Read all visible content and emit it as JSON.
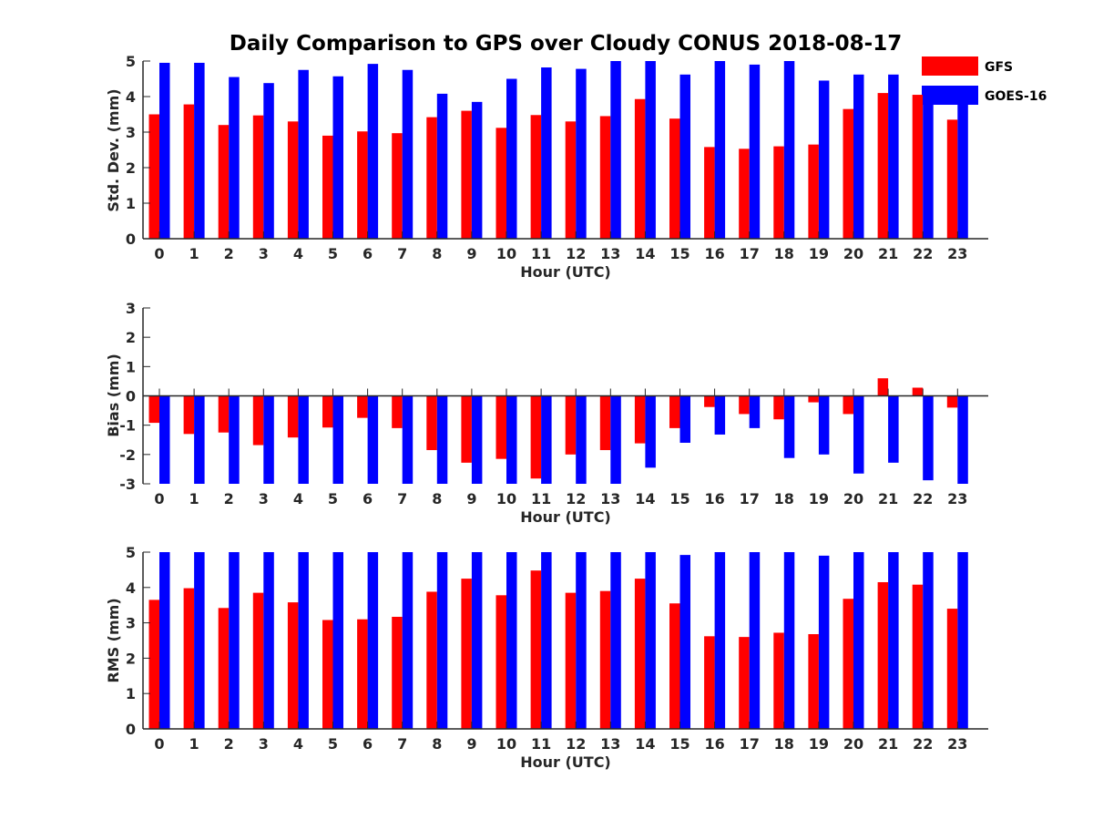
{
  "chart_data": [
    {
      "type": "bar",
      "title": "Daily Comparison to GPS over Cloudy CONUS 2018-08-17",
      "xlabel": "Hour (UTC)",
      "ylabel": "Std. Dev. (mm)",
      "ylim": [
        0,
        5
      ],
      "yticks": [
        0,
        1,
        2,
        3,
        4,
        5
      ],
      "categories": [
        "0",
        "1",
        "2",
        "3",
        "4",
        "5",
        "6",
        "7",
        "8",
        "9",
        "10",
        "11",
        "12",
        "13",
        "14",
        "15",
        "16",
        "17",
        "18",
        "19",
        "20",
        "21",
        "22",
        "23"
      ],
      "series": [
        {
          "name": "GFS",
          "color": "#ff0000",
          "values": [
            3.5,
            3.78,
            3.2,
            3.47,
            3.3,
            2.9,
            3.02,
            2.97,
            3.42,
            3.6,
            3.12,
            3.48,
            3.3,
            3.45,
            3.93,
            3.38,
            2.58,
            2.53,
            2.6,
            2.65,
            3.65,
            4.1,
            4.05,
            3.35
          ]
        },
        {
          "name": "GOES-16",
          "color": "#0000ff",
          "values": [
            4.95,
            4.95,
            4.55,
            4.38,
            4.75,
            4.57,
            4.92,
            4.75,
            4.08,
            3.85,
            4.5,
            4.82,
            4.78,
            5.0,
            5.0,
            4.62,
            5.0,
            4.9,
            5.0,
            4.45,
            4.62,
            4.62,
            4.22,
            3.98
          ]
        }
      ],
      "legend": "top-right",
      "grid": false
    },
    {
      "type": "bar",
      "xlabel": "Hour (UTC)",
      "ylabel": "Bias (mm)",
      "ylim": [
        -3,
        3
      ],
      "yticks": [
        -3,
        -2,
        -1,
        0,
        1,
        2,
        3
      ],
      "categories": [
        "0",
        "1",
        "2",
        "3",
        "4",
        "5",
        "6",
        "7",
        "8",
        "9",
        "10",
        "11",
        "12",
        "13",
        "14",
        "15",
        "16",
        "17",
        "18",
        "19",
        "20",
        "21",
        "22",
        "23"
      ],
      "series": [
        {
          "name": "GFS",
          "color": "#ff0000",
          "values": [
            -0.92,
            -1.3,
            -1.25,
            -1.68,
            -1.42,
            -1.08,
            -0.75,
            -1.1,
            -1.85,
            -2.28,
            -2.15,
            -2.82,
            -2.0,
            -1.85,
            -1.62,
            -1.1,
            -0.38,
            -0.62,
            -0.8,
            -0.22,
            -0.62,
            0.6,
            0.28,
            -0.4
          ]
        },
        {
          "name": "GOES-16",
          "color": "#0000ff",
          "values": [
            -3.0,
            -3.0,
            -3.0,
            -3.0,
            -3.0,
            -3.0,
            -3.0,
            -3.0,
            -3.0,
            -3.0,
            -3.0,
            -3.0,
            -3.0,
            -3.0,
            -2.45,
            -1.6,
            -1.32,
            -1.1,
            -2.12,
            -2.0,
            -2.65,
            -2.28,
            -2.88,
            -3.0
          ]
        }
      ],
      "grid": false
    },
    {
      "type": "bar",
      "xlabel": "Hour (UTC)",
      "ylabel": "RMS (mm)",
      "ylim": [
        0,
        5
      ],
      "yticks": [
        0,
        1,
        2,
        3,
        4,
        5
      ],
      "categories": [
        "0",
        "1",
        "2",
        "3",
        "4",
        "5",
        "6",
        "7",
        "8",
        "9",
        "10",
        "11",
        "12",
        "13",
        "14",
        "15",
        "16",
        "17",
        "18",
        "19",
        "20",
        "21",
        "22",
        "23"
      ],
      "series": [
        {
          "name": "GFS",
          "color": "#ff0000",
          "values": [
            3.65,
            3.98,
            3.42,
            3.85,
            3.58,
            3.08,
            3.1,
            3.17,
            3.88,
            4.25,
            3.78,
            4.48,
            3.85,
            3.9,
            4.25,
            3.55,
            2.62,
            2.6,
            2.72,
            2.68,
            3.68,
            4.15,
            4.08,
            3.4
          ]
        },
        {
          "name": "GOES-16",
          "color": "#0000ff",
          "values": [
            5.0,
            5.0,
            5.0,
            5.0,
            5.0,
            5.0,
            5.0,
            5.0,
            5.0,
            5.0,
            5.0,
            5.0,
            5.0,
            5.0,
            5.0,
            4.92,
            5.0,
            5.0,
            5.0,
            4.9,
            5.0,
            5.0,
            5.0,
            5.0
          ]
        }
      ],
      "grid": false
    }
  ]
}
